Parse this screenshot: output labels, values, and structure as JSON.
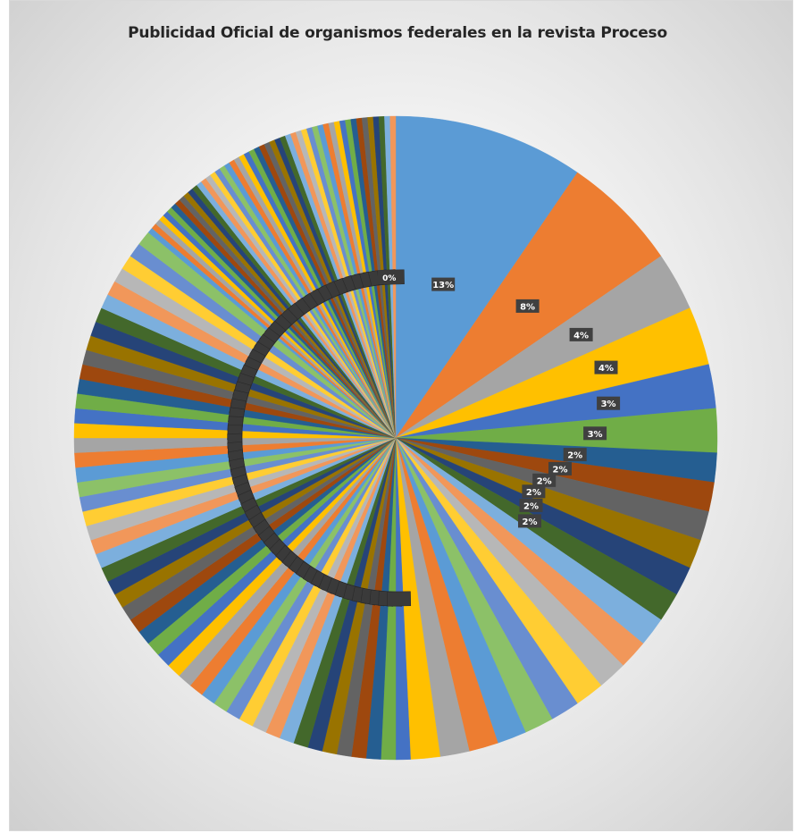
{
  "chart_data": {
    "type": "pie",
    "title": "Publicidad Oficial de organismos federales en la revista Proceso",
    "values": [
      13,
      8,
      4,
      4,
      3,
      3,
      2,
      2,
      2,
      2,
      2,
      2,
      2,
      2,
      2,
      2,
      2,
      2,
      2,
      2,
      2,
      2,
      1,
      1,
      1,
      1,
      1,
      1,
      1,
      1,
      1,
      1,
      1,
      1,
      1,
      1,
      1,
      1,
      1,
      1,
      1,
      1,
      1,
      1,
      1,
      1,
      1,
      1,
      1,
      1,
      1,
      1,
      1,
      1,
      1,
      1,
      1,
      1,
      1,
      1,
      1,
      1,
      1,
      1,
      1,
      1,
      1,
      1,
      1,
      1,
      1,
      1,
      0,
      0,
      0,
      0,
      0,
      0,
      0,
      0,
      0,
      0,
      0,
      0,
      0,
      0,
      0,
      0,
      0,
      0,
      0,
      0,
      0,
      0,
      0,
      0,
      0,
      0,
      0,
      0,
      0,
      0,
      0,
      0,
      0,
      0,
      0,
      0,
      0,
      0,
      0,
      0,
      0,
      0,
      0,
      0,
      0,
      0,
      0,
      0,
      0,
      0
    ],
    "value_unit": "%",
    "visible_data_labels": [
      "13%",
      "8%",
      "4%",
      "4%",
      "3%",
      "3%",
      "2%",
      "2%",
      "2%",
      "2%",
      "2%",
      "2%",
      "0%"
    ],
    "start_angle": "12 o'clock, clockwise",
    "legend": "none",
    "palette": [
      "#5b9bd5",
      "#ed7d31",
      "#a5a5a5",
      "#ffc000",
      "#4472c4",
      "#70ad47",
      "#255e91",
      "#9e480e",
      "#636363",
      "#997300",
      "#264478",
      "#43682b",
      "#7cafdd",
      "#f1975a",
      "#b7b7b7",
      "#ffcd33",
      "#698ed0",
      "#8cc168"
    ],
    "background": "#e6e6e6",
    "label_box_color": "#404040"
  }
}
